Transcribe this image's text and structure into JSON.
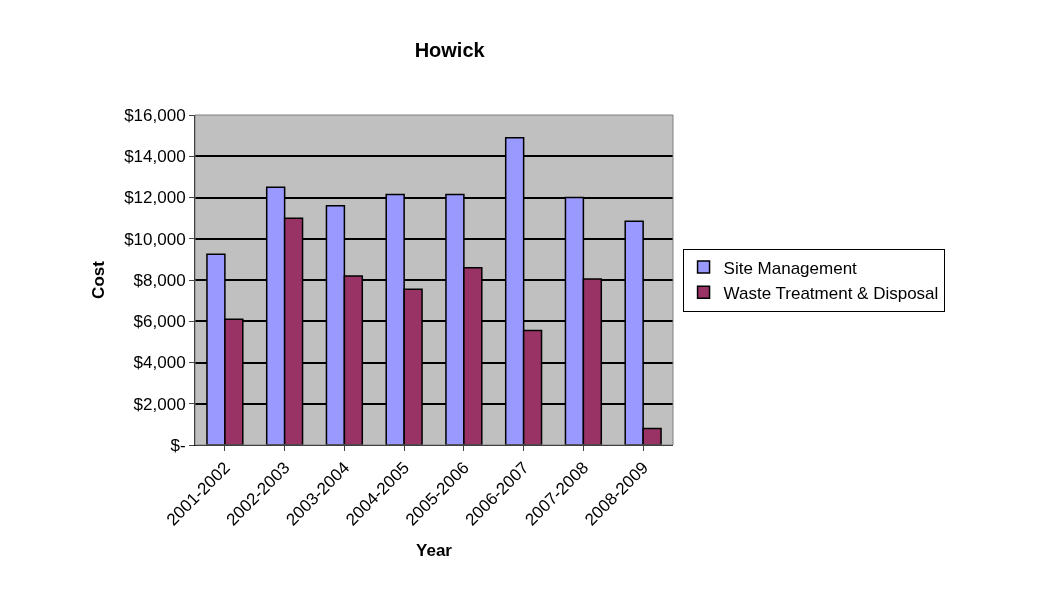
{
  "chart_data": {
    "type": "bar",
    "title": "Howick",
    "xlabel": "Year",
    "ylabel": "Cost",
    "categories": [
      "2001-2002",
      "2002-2003",
      "2003-2004",
      "2004-2005",
      "2005-2006",
      "2006-2007",
      "2007-2008",
      "2008-2009"
    ],
    "series": [
      {
        "name": "Site Management",
        "color": "#9999ff",
        "values": [
          9250,
          12500,
          11600,
          12150,
          12150,
          14900,
          12000,
          10850
        ]
      },
      {
        "name": "Waste Treatment & Disposal",
        "color": "#993366",
        "values": [
          6100,
          11000,
          8200,
          7550,
          8600,
          5550,
          8050,
          800
        ]
      }
    ],
    "ylim": [
      0,
      16000
    ],
    "yticks": [
      {
        "value": 0,
        "label": "$-"
      },
      {
        "value": 2000,
        "label": "$2,000"
      },
      {
        "value": 4000,
        "label": "$4,000"
      },
      {
        "value": 6000,
        "label": "$6,000"
      },
      {
        "value": 8000,
        "label": "$8,000"
      },
      {
        "value": 10000,
        "label": "$10,000"
      },
      {
        "value": 12000,
        "label": "$12,000"
      },
      {
        "value": 14000,
        "label": "$14,000"
      },
      {
        "value": 16000,
        "label": "$16,000"
      }
    ],
    "grid": "y",
    "legend": "right"
  }
}
